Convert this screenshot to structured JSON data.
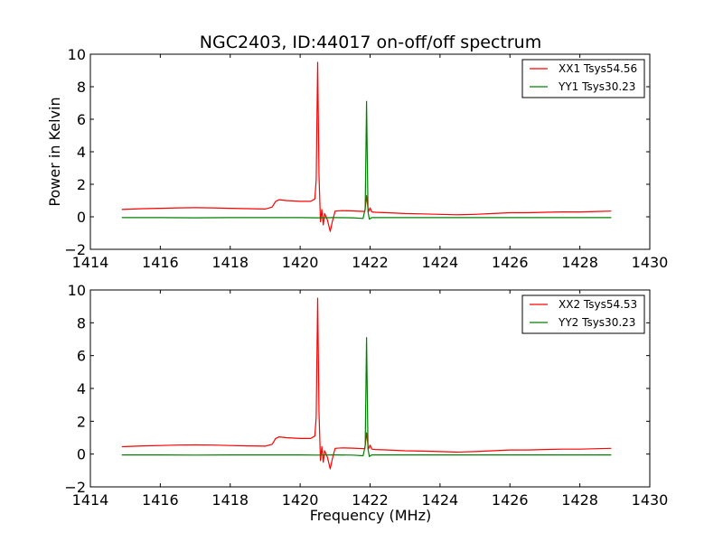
{
  "chart_data": [
    {
      "type": "line",
      "title": "NGC2403, ID:44017 on-off/off spectrum",
      "xlabel": "",
      "ylabel": "Power in Kelvin",
      "xlim": [
        1414,
        1430
      ],
      "ylim": [
        -2,
        10
      ],
      "xticks": [
        "1414",
        "1416",
        "1418",
        "1420",
        "1422",
        "1424",
        "1426",
        "1428",
        "1430"
      ],
      "yticks": [
        "−2",
        "0",
        "2",
        "4",
        "6",
        "8",
        "10"
      ],
      "grid": false,
      "legend_position": "top-right",
      "series": [
        {
          "name": "XX1 Tsys54.56",
          "color": "#ff0000",
          "x": [
            1414.9,
            1415.5,
            1416.0,
            1416.5,
            1417.0,
            1417.5,
            1418.0,
            1418.5,
            1419.0,
            1419.2,
            1419.3,
            1419.4,
            1419.6,
            1420.0,
            1420.3,
            1420.42,
            1420.46,
            1420.5,
            1420.54,
            1420.58,
            1420.62,
            1420.66,
            1420.7,
            1420.78,
            1420.86,
            1420.92,
            1421.0,
            1421.2,
            1421.5,
            1421.85,
            1421.9,
            1421.95,
            1422.0,
            1422.05,
            1422.15,
            1422.5,
            1423.0,
            1423.5,
            1424.0,
            1424.5,
            1425.0,
            1425.5,
            1426.0,
            1426.5,
            1427.0,
            1427.5,
            1428.0,
            1428.5,
            1428.9
          ],
          "y": [
            0.45,
            0.5,
            0.52,
            0.55,
            0.56,
            0.55,
            0.52,
            0.5,
            0.48,
            0.6,
            0.95,
            1.05,
            1.0,
            0.95,
            0.95,
            1.1,
            2.3,
            9.5,
            2.5,
            -0.3,
            0.45,
            -0.5,
            0.2,
            -0.2,
            -0.9,
            -0.3,
            0.35,
            0.38,
            0.36,
            0.33,
            1.3,
            0.3,
            0.55,
            0.3,
            0.28,
            0.25,
            0.2,
            0.18,
            0.15,
            0.12,
            0.15,
            0.2,
            0.25,
            0.25,
            0.28,
            0.3,
            0.3,
            0.33,
            0.35
          ]
        },
        {
          "name": "YY1 Tsys30.23",
          "color": "#008000",
          "x": [
            1414.9,
            1416.0,
            1417.0,
            1418.0,
            1419.0,
            1420.0,
            1420.5,
            1421.0,
            1421.5,
            1421.8,
            1421.86,
            1421.9,
            1421.94,
            1421.98,
            1422.05,
            1422.5,
            1423.0,
            1424.0,
            1425.0,
            1426.0,
            1427.0,
            1428.0,
            1428.9
          ],
          "y": [
            -0.05,
            -0.05,
            -0.06,
            -0.05,
            -0.05,
            -0.05,
            -0.06,
            -0.05,
            -0.06,
            -0.1,
            0.5,
            7.1,
            0.3,
            -0.15,
            -0.05,
            -0.05,
            -0.05,
            -0.05,
            -0.05,
            -0.05,
            -0.05,
            -0.05,
            -0.05
          ]
        }
      ]
    },
    {
      "type": "line",
      "title": "",
      "xlabel": "Frequency (MHz)",
      "ylabel": "",
      "xlim": [
        1414,
        1430
      ],
      "ylim": [
        -2,
        10
      ],
      "xticks": [
        "1414",
        "1416",
        "1418",
        "1420",
        "1422",
        "1424",
        "1426",
        "1428",
        "1430"
      ],
      "yticks": [
        "−2",
        "0",
        "2",
        "4",
        "6",
        "8",
        "10"
      ],
      "grid": false,
      "legend_position": "top-right",
      "series": [
        {
          "name": "XX2 Tsys54.53",
          "color": "#ff0000",
          "x": [
            1414.9,
            1415.5,
            1416.0,
            1416.5,
            1417.0,
            1417.5,
            1418.0,
            1418.5,
            1419.0,
            1419.2,
            1419.3,
            1419.4,
            1419.6,
            1420.0,
            1420.3,
            1420.42,
            1420.46,
            1420.5,
            1420.54,
            1420.58,
            1420.62,
            1420.66,
            1420.7,
            1420.78,
            1420.86,
            1420.92,
            1421.0,
            1421.2,
            1421.5,
            1421.85,
            1421.9,
            1421.95,
            1422.0,
            1422.05,
            1422.15,
            1422.5,
            1423.0,
            1423.5,
            1424.0,
            1424.5,
            1425.0,
            1425.5,
            1426.0,
            1426.5,
            1427.0,
            1427.5,
            1428.0,
            1428.5,
            1428.9
          ],
          "y": [
            0.45,
            0.5,
            0.52,
            0.55,
            0.56,
            0.55,
            0.52,
            0.5,
            0.48,
            0.6,
            0.95,
            1.05,
            1.0,
            0.95,
            0.95,
            1.1,
            2.3,
            9.5,
            2.5,
            -0.4,
            0.45,
            -0.5,
            0.2,
            -0.2,
            -0.9,
            -0.3,
            0.35,
            0.38,
            0.36,
            0.33,
            1.3,
            0.3,
            0.55,
            0.3,
            0.28,
            0.25,
            0.2,
            0.18,
            0.15,
            0.12,
            0.15,
            0.2,
            0.25,
            0.25,
            0.28,
            0.3,
            0.3,
            0.33,
            0.35
          ]
        },
        {
          "name": "YY2 Tsys30.23",
          "color": "#008000",
          "x": [
            1414.9,
            1416.0,
            1417.0,
            1418.0,
            1419.0,
            1420.0,
            1420.5,
            1421.0,
            1421.5,
            1421.8,
            1421.86,
            1421.9,
            1421.94,
            1421.98,
            1422.05,
            1422.5,
            1423.0,
            1424.0,
            1425.0,
            1426.0,
            1427.0,
            1428.0,
            1428.9
          ],
          "y": [
            -0.05,
            -0.05,
            -0.06,
            -0.05,
            -0.05,
            -0.05,
            -0.06,
            -0.05,
            -0.06,
            -0.1,
            0.5,
            7.1,
            0.3,
            -0.15,
            -0.05,
            -0.05,
            -0.05,
            -0.05,
            -0.05,
            -0.05,
            -0.05,
            -0.05,
            -0.05
          ]
        }
      ]
    }
  ]
}
